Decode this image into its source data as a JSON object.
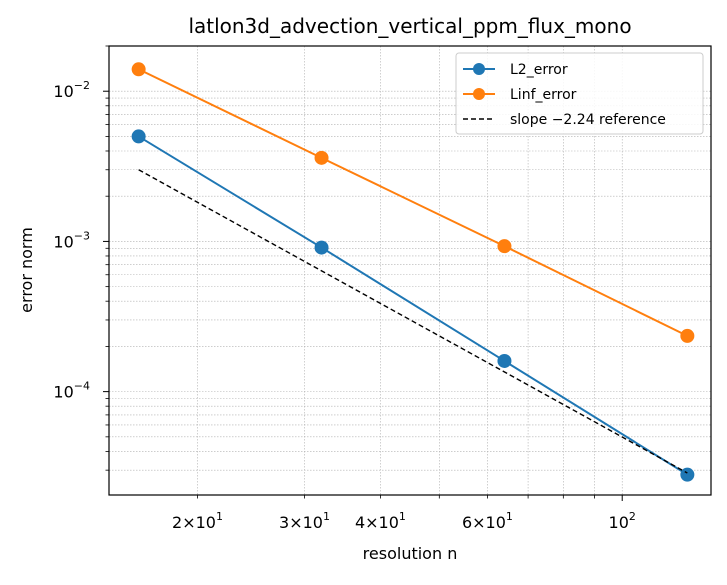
{
  "chart_data": {
    "type": "line",
    "title": "latlon3d_advection_vertical_ppm_flux_mono",
    "xlabel": "resolution n",
    "ylabel": "error norm",
    "xscale": "log",
    "yscale": "log",
    "xlim": [
      14.3,
      140
    ],
    "ylim": [
      2.05e-05,
      0.02
    ],
    "grid": true,
    "legend_position": "upper right",
    "x_ticks": [
      {
        "value": 20,
        "mantissa": "2",
        "base": "10",
        "exp": "1"
      },
      {
        "value": 30,
        "mantissa": "3",
        "base": "10",
        "exp": "1"
      },
      {
        "value": 40,
        "mantissa": "4",
        "base": "10",
        "exp": "1"
      },
      {
        "value": 60,
        "mantissa": "6",
        "base": "10",
        "exp": "1"
      },
      {
        "value": 100,
        "mantissa": "",
        "base": "10",
        "exp": "2"
      }
    ],
    "y_ticks": [
      {
        "value": 0.01,
        "base": "10",
        "exp": "−2"
      },
      {
        "value": 0.001,
        "base": "10",
        "exp": "−3"
      },
      {
        "value": 0.0001,
        "base": "10",
        "exp": "−4"
      }
    ],
    "series": [
      {
        "name": "L2_error",
        "color": "#1f77b4",
        "style": "solid",
        "marker": "circle",
        "x": [
          16,
          32,
          64,
          128
        ],
        "y": [
          0.005,
          0.00091,
          0.00016,
          2.8e-05
        ]
      },
      {
        "name": "Linf_error",
        "color": "#ff7f0e",
        "style": "solid",
        "marker": "circle",
        "x": [
          16,
          32,
          64,
          128
        ],
        "y": [
          0.014,
          0.0036,
          0.00093,
          0.000235
        ]
      },
      {
        "name": "slope −2.24 reference",
        "color": "#000000",
        "style": "dashed",
        "marker": "none",
        "x": [
          16,
          128
        ],
        "y": [
          0.003,
          2.87e-05
        ]
      }
    ]
  }
}
